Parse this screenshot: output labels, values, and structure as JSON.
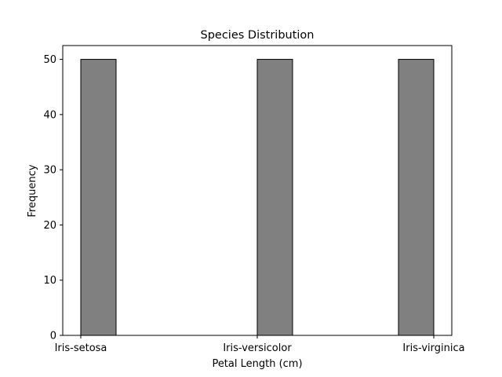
{
  "chart_data": {
    "type": "bar",
    "title": "Species Distribution",
    "xlabel": "Petal Length (cm)",
    "ylabel": "Frequency",
    "categories": [
      "Iris-setosa",
      "Iris-versicolor",
      "Iris-virginica"
    ],
    "values": [
      50,
      50,
      50
    ],
    "ylim": [
      0,
      52.5
    ],
    "yticks": [
      0,
      10,
      20,
      30,
      40,
      50
    ],
    "grid": false,
    "legend": false,
    "colors": {
      "bar_fill": "#808080",
      "bar_edge": "#000000",
      "axis": "#000000",
      "background": "#ffffff"
    }
  }
}
